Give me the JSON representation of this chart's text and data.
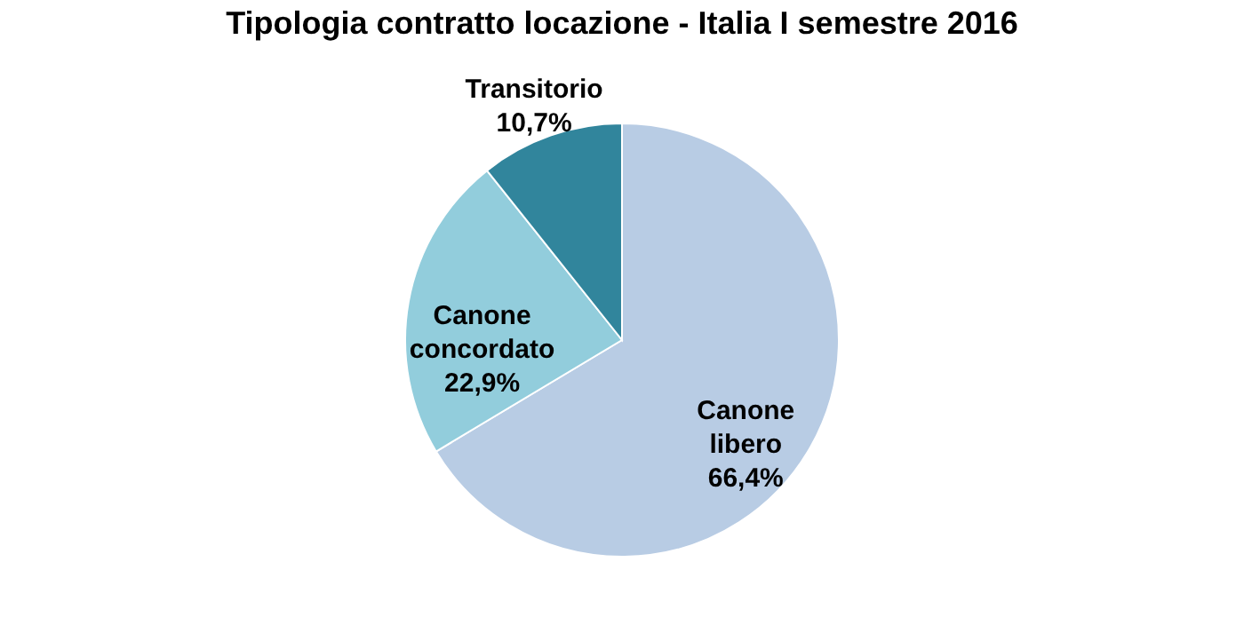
{
  "chart_data": {
    "type": "pie",
    "title": "Tipologia contratto locazione - Italia I semestre 2016",
    "categories": [
      "Canone libero",
      "Canone concordato",
      "Transitorio"
    ],
    "values": [
      66.4,
      22.9,
      10.7
    ],
    "value_labels": [
      "66,4%",
      "22,9%",
      "10,7%"
    ],
    "colors": [
      "#b8cce4",
      "#92cddc",
      "#31859c"
    ],
    "legend": false
  }
}
